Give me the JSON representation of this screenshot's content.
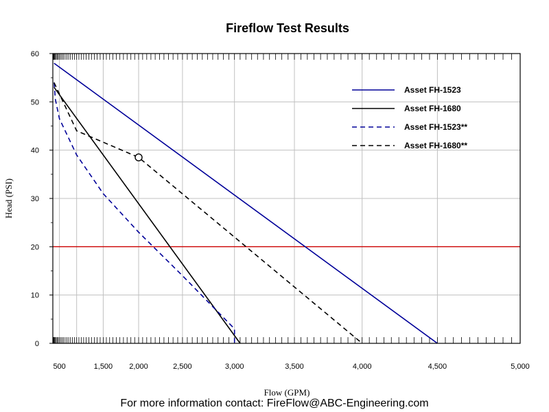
{
  "chart_data": {
    "type": "line",
    "title": "Fireflow Test Results",
    "xlabel": "Flow (GPM)",
    "ylabel": "Head (PSI)",
    "x_ticks": [
      500,
      1500,
      2000,
      2500,
      3000,
      3500,
      4000,
      4500,
      5000
    ],
    "x_tick_labels": [
      "500",
      "1,500",
      "2,000",
      "2,500",
      "3,000",
      "3,500",
      "4,000",
      "4,500",
      "5,000"
    ],
    "y_ticks": [
      0,
      10,
      20,
      30,
      40,
      50,
      60
    ],
    "y_tick_labels": [
      "0",
      "10",
      "20",
      "30",
      "40",
      "50",
      "60"
    ],
    "ylim": [
      0,
      60
    ],
    "grid": true,
    "legend_position": "top-right",
    "reference_line": {
      "y": 20,
      "color": "#cc0000"
    },
    "series": [
      {
        "name": "Asset FH-1523",
        "style": "solid",
        "color": "#000099",
        "points": [
          [
            200,
            58
          ],
          [
            4500,
            0
          ]
        ]
      },
      {
        "name": "Asset FH-1680",
        "style": "solid",
        "color": "#000000",
        "points": [
          [
            200,
            53
          ],
          [
            3050,
            0
          ]
        ]
      },
      {
        "name": "Asset FH-1523**",
        "style": "dashed",
        "color": "#000099",
        "points": [
          [
            200,
            54
          ],
          [
            300,
            50.5
          ],
          [
            500,
            46.5
          ],
          [
            1000,
            39
          ],
          [
            1500,
            31
          ],
          [
            2000,
            23
          ],
          [
            2500,
            14
          ],
          [
            3000,
            3
          ],
          [
            3000,
            0
          ]
        ]
      },
      {
        "name": "Asset FH-1680**",
        "style": "dashed",
        "color": "#000000",
        "points": [
          [
            200,
            54
          ],
          [
            1000,
            44
          ],
          [
            2000,
            38.5
          ],
          [
            3000,
            22
          ],
          [
            4000,
            0
          ]
        ]
      }
    ],
    "marker": {
      "x": 2000,
      "y": 38.5
    }
  },
  "footer": "For more information contact: FireFlow@ABC-Engineering.com"
}
